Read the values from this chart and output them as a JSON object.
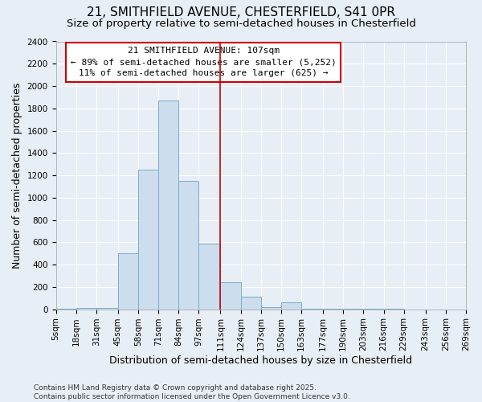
{
  "title_line1": "21, SMITHFIELD AVENUE, CHESTERFIELD, S41 0PR",
  "title_line2": "Size of property relative to semi-detached houses in Chesterfield",
  "xlabel": "Distribution of semi-detached houses by size in Chesterfield",
  "ylabel": "Number of semi-detached properties",
  "annotation_title": "21 SMITHFIELD AVENUE: 107sqm",
  "annotation_line2": "← 89% of semi-detached houses are smaller (5,252)",
  "annotation_line3": "11% of semi-detached houses are larger (625) →",
  "bin_edges": [
    5,
    18,
    31,
    45,
    58,
    71,
    84,
    97,
    111,
    124,
    137,
    150,
    163,
    177,
    190,
    203,
    216,
    229,
    243,
    256,
    269
  ],
  "bin_labels": [
    "5sqm",
    "18sqm",
    "31sqm",
    "45sqm",
    "58sqm",
    "71sqm",
    "84sqm",
    "97sqm",
    "111sqm",
    "124sqm",
    "137sqm",
    "150sqm",
    "163sqm",
    "177sqm",
    "190sqm",
    "203sqm",
    "216sqm",
    "229sqm",
    "243sqm",
    "256sqm",
    "269sqm"
  ],
  "bar_heights": [
    5,
    15,
    10,
    500,
    1250,
    1870,
    1150,
    590,
    245,
    110,
    20,
    60,
    5,
    5,
    2,
    1,
    1,
    0,
    0,
    0
  ],
  "bar_color": "#ccdded",
  "bar_edge_color": "#7aadcc",
  "vline_color": "#cc0000",
  "vline_x": 111,
  "ylim": [
    0,
    2400
  ],
  "yticks": [
    0,
    200,
    400,
    600,
    800,
    1000,
    1200,
    1400,
    1600,
    1800,
    2000,
    2200,
    2400
  ],
  "bg_color": "#e8eef5",
  "grid_color": "#ffffff",
  "annotation_box_edge": "#cc0000",
  "footer_line1": "Contains HM Land Registry data © Crown copyright and database right 2025.",
  "footer_line2": "Contains public sector information licensed under the Open Government Licence v3.0.",
  "title_fontsize": 11,
  "subtitle_fontsize": 9.5,
  "label_fontsize": 9,
  "tick_fontsize": 7.5,
  "annotation_fontsize": 8,
  "footer_fontsize": 6.5
}
